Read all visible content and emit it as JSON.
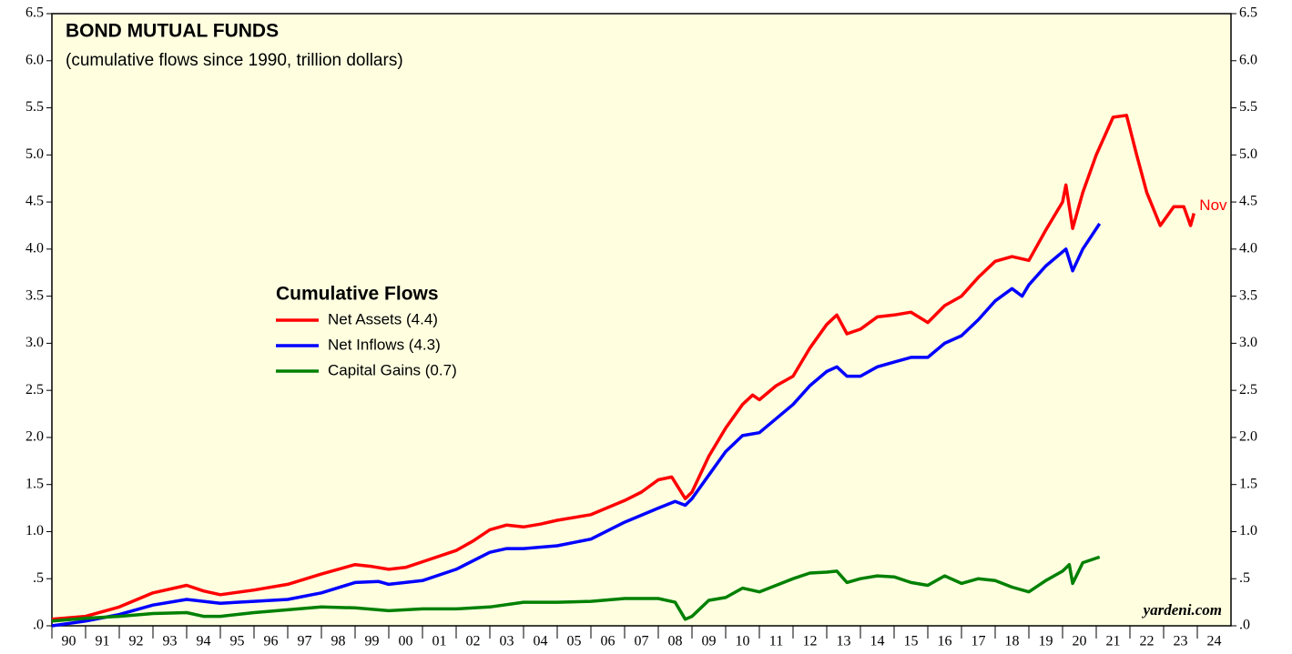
{
  "chart_data": {
    "type": "line",
    "title": "BOND MUTUAL FUNDS",
    "subtitle": "(cumulative flows since 1990, trillion dollars)",
    "legend_title": "Cumulative Flows",
    "annotation": "Nov",
    "source": "yardeni.com",
    "xlim": [
      1990,
      2025
    ],
    "xticks": [
      {
        "value": 1990,
        "label": "90"
      },
      {
        "value": 1991,
        "label": "91"
      },
      {
        "value": 1992,
        "label": "92"
      },
      {
        "value": 1993,
        "label": "93"
      },
      {
        "value": 1994,
        "label": "94"
      },
      {
        "value": 1995,
        "label": "95"
      },
      {
        "value": 1996,
        "label": "96"
      },
      {
        "value": 1997,
        "label": "97"
      },
      {
        "value": 1998,
        "label": "98"
      },
      {
        "value": 1999,
        "label": "99"
      },
      {
        "value": 2000,
        "label": "00"
      },
      {
        "value": 2001,
        "label": "01"
      },
      {
        "value": 2002,
        "label": "02"
      },
      {
        "value": 2003,
        "label": "03"
      },
      {
        "value": 2004,
        "label": "04"
      },
      {
        "value": 2005,
        "label": "05"
      },
      {
        "value": 2006,
        "label": "06"
      },
      {
        "value": 2007,
        "label": "07"
      },
      {
        "value": 2008,
        "label": "08"
      },
      {
        "value": 2009,
        "label": "09"
      },
      {
        "value": 2010,
        "label": "10"
      },
      {
        "value": 2011,
        "label": "11"
      },
      {
        "value": 2012,
        "label": "12"
      },
      {
        "value": 2013,
        "label": "13"
      },
      {
        "value": 2014,
        "label": "14"
      },
      {
        "value": 2015,
        "label": "15"
      },
      {
        "value": 2016,
        "label": "16"
      },
      {
        "value": 2017,
        "label": "17"
      },
      {
        "value": 2018,
        "label": "18"
      },
      {
        "value": 2019,
        "label": "19"
      },
      {
        "value": 2020,
        "label": "20"
      },
      {
        "value": 2021,
        "label": "21"
      },
      {
        "value": 2022,
        "label": "22"
      },
      {
        "value": 2023,
        "label": "23"
      },
      {
        "value": 2024,
        "label": "24"
      }
    ],
    "ylim": [
      0,
      6.5
    ],
    "yticks": [
      {
        "value": 0,
        "label": ".0"
      },
      {
        "value": 0.5,
        "label": ".5"
      },
      {
        "value": 1,
        "label": "1.0"
      },
      1.5,
      {
        "value": 2,
        "label": "2.0"
      },
      2.5,
      {
        "value": 3,
        "label": "3.0"
      },
      3.5,
      {
        "value": 4,
        "label": "4.0"
      },
      4.5,
      {
        "value": 5,
        "label": "5.0"
      },
      5.5,
      {
        "value": 6,
        "label": "6.0"
      },
      6.5
    ],
    "series": [
      {
        "name": "Net Assets (4.4)",
        "color": "#ff0000",
        "x": [
          1990,
          1991,
          1992,
          1993,
          1994,
          1994.5,
          1995,
          1996,
          1997,
          1998,
          1999,
          1999.5,
          2000,
          2000.5,
          2001,
          2002,
          2002.5,
          2003,
          2003.5,
          2004,
          2004.5,
          2005,
          2006,
          2007,
          2007.5,
          2008,
          2008.4,
          2008.8,
          2009,
          2009.5,
          2010,
          2010.5,
          2010.8,
          2011,
          2011.5,
          2012,
          2012.5,
          2013,
          2013.3,
          2013.6,
          2014,
          2014.5,
          2015,
          2015.5,
          2016,
          2016.5,
          2017,
          2017.5,
          2018,
          2018.5,
          2019,
          2019.5,
          2020,
          2020.1,
          2020.3,
          2020.6,
          2021,
          2021.5,
          2021.9,
          2022.2,
          2022.5,
          2022.9,
          2023.3,
          2023.6,
          2023.8,
          2023.9
        ],
        "values": [
          0.07,
          0.1,
          0.2,
          0.35,
          0.43,
          0.37,
          0.33,
          0.38,
          0.44,
          0.55,
          0.65,
          0.63,
          0.6,
          0.62,
          0.68,
          0.8,
          0.9,
          1.02,
          1.07,
          1.05,
          1.08,
          1.12,
          1.18,
          1.33,
          1.42,
          1.55,
          1.58,
          1.35,
          1.42,
          1.8,
          2.1,
          2.35,
          2.45,
          2.4,
          2.55,
          2.65,
          2.95,
          3.2,
          3.3,
          3.1,
          3.15,
          3.28,
          3.3,
          3.33,
          3.22,
          3.4,
          3.5,
          3.7,
          3.87,
          3.92,
          3.88,
          4.2,
          4.5,
          4.68,
          4.22,
          4.6,
          5.0,
          5.4,
          5.42,
          5.0,
          4.6,
          4.25,
          4.45,
          4.45,
          4.25,
          4.38
        ]
      },
      {
        "name": "Net Inflows (4.3)",
        "color": "#0000ff",
        "x": [
          1990,
          1991,
          1992,
          1993,
          1994,
          1995,
          1996,
          1997,
          1998,
          1999,
          1999.7,
          2000,
          2001,
          2002,
          2003,
          2003.5,
          2004,
          2005,
          2006,
          2007,
          2008,
          2008.5,
          2008.8,
          2009,
          2009.5,
          2010,
          2010.5,
          2011,
          2011.5,
          2012,
          2012.5,
          2013,
          2013.3,
          2013.6,
          2014,
          2014.5,
          2015,
          2015.5,
          2016,
          2016.5,
          2017,
          2017.5,
          2018,
          2018.5,
          2018.8,
          2019,
          2019.5,
          2020.1,
          2020.3,
          2020.6,
          2021.1
        ],
        "values": [
          0.0,
          0.05,
          0.12,
          0.22,
          0.28,
          0.24,
          0.26,
          0.28,
          0.35,
          0.46,
          0.47,
          0.44,
          0.48,
          0.6,
          0.78,
          0.82,
          0.82,
          0.85,
          0.92,
          1.1,
          1.25,
          1.32,
          1.28,
          1.35,
          1.6,
          1.85,
          2.02,
          2.05,
          2.2,
          2.35,
          2.55,
          2.7,
          2.75,
          2.65,
          2.65,
          2.75,
          2.8,
          2.85,
          2.85,
          3.0,
          3.08,
          3.25,
          3.45,
          3.58,
          3.5,
          3.62,
          3.82,
          4.0,
          3.77,
          4.0,
          4.27
        ]
      },
      {
        "name": "Capital Gains (0.7)",
        "color": "#008000",
        "x": [
          1990,
          1991,
          1992,
          1993,
          1994,
          1994.5,
          1995,
          1996,
          1997,
          1998,
          1999,
          2000,
          2001,
          2002,
          2003,
          2004,
          2005,
          2006,
          2007,
          2008,
          2008.5,
          2008.8,
          2009,
          2009.5,
          2010,
          2010.5,
          2011,
          2011.5,
          2012,
          2012.5,
          2013,
          2013.3,
          2013.6,
          2014,
          2014.5,
          2015,
          2015.5,
          2016,
          2016.5,
          2017,
          2017.5,
          2018,
          2018.5,
          2019,
          2019.5,
          2020,
          2020.2,
          2020.3,
          2020.6,
          2021.1
        ],
        "values": [
          0.05,
          0.08,
          0.1,
          0.13,
          0.14,
          0.1,
          0.1,
          0.14,
          0.17,
          0.2,
          0.19,
          0.16,
          0.18,
          0.18,
          0.2,
          0.25,
          0.25,
          0.26,
          0.29,
          0.29,
          0.25,
          0.07,
          0.1,
          0.27,
          0.3,
          0.4,
          0.36,
          0.43,
          0.5,
          0.56,
          0.57,
          0.58,
          0.46,
          0.5,
          0.53,
          0.52,
          0.46,
          0.43,
          0.53,
          0.45,
          0.5,
          0.48,
          0.41,
          0.36,
          0.48,
          0.58,
          0.65,
          0.45,
          0.67,
          0.73
        ]
      }
    ]
  }
}
